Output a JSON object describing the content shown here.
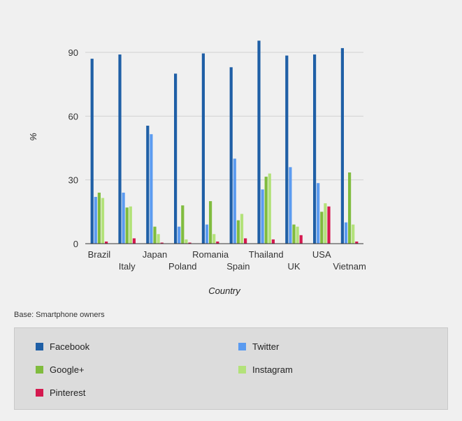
{
  "chart_data": {
    "type": "bar",
    "xlabel": "Country",
    "ylabel": "%",
    "ylim": [
      0,
      90
    ],
    "yticks": [
      0,
      30,
      60,
      90
    ],
    "grid": "horizontal",
    "legend_placement": "bottom",
    "categories": [
      "Brazil",
      "Italy",
      "Japan",
      "Poland",
      "Romania",
      "Spain",
      "Thailand",
      "UK",
      "USA",
      "Vietnam"
    ],
    "series": [
      {
        "name": "Facebook",
        "color": "#1f5fa6",
        "values": [
          87,
          89,
          55.5,
          80,
          89.5,
          83,
          95.5,
          88.5,
          89,
          92
        ]
      },
      {
        "name": "Twitter",
        "color": "#5b9bf0",
        "values": [
          22,
          24,
          51.5,
          8,
          9,
          40,
          25.5,
          36,
          28.5,
          10
        ]
      },
      {
        "name": "Google+",
        "color": "#80bc3e",
        "values": [
          24,
          17,
          8,
          18,
          20,
          11,
          31.5,
          9,
          15,
          33.5
        ]
      },
      {
        "name": "Instagram",
        "color": "#b3e27a",
        "values": [
          21.5,
          17.5,
          4.5,
          2,
          4.5,
          14,
          33,
          8,
          19,
          9
        ]
      },
      {
        "name": "Pinterest",
        "color": "#d4194f",
        "values": [
          1,
          2.5,
          0.5,
          0.5,
          1,
          2.5,
          2,
          4,
          17.5,
          1
        ]
      }
    ]
  },
  "base_note": "Base: Smartphone owners"
}
